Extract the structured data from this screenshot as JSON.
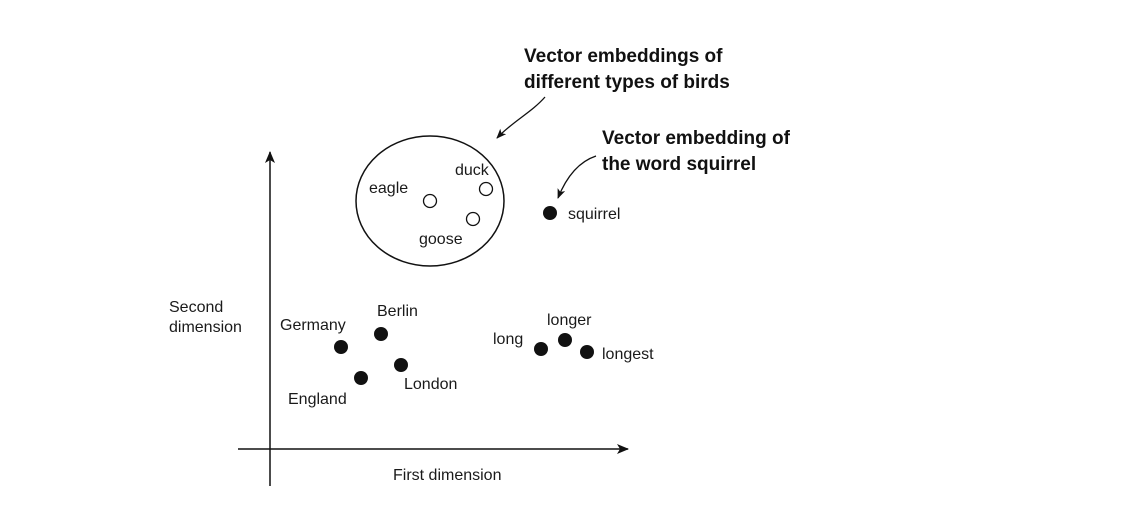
{
  "figure": {
    "axes": {
      "x_label": "First dimension",
      "y_label_line1": "Second",
      "y_label_line2": "dimension"
    },
    "points": {
      "eagle": "eagle",
      "duck": "duck",
      "goose": "goose",
      "squirrel": "squirrel",
      "germany": "Germany",
      "berlin": "Berlin",
      "england": "England",
      "london": "London",
      "long": "long",
      "longer": "longer",
      "longest": "longest"
    },
    "annotations": {
      "birds_line1": "Vector embeddings of",
      "birds_line2": "different types of birds",
      "squirrel_line1": "Vector embedding of",
      "squirrel_line2": "the word squirrel"
    },
    "colors": {
      "ink": "#111111",
      "open_marker_fill": "#ffffff",
      "filled_marker": "#111111"
    }
  }
}
